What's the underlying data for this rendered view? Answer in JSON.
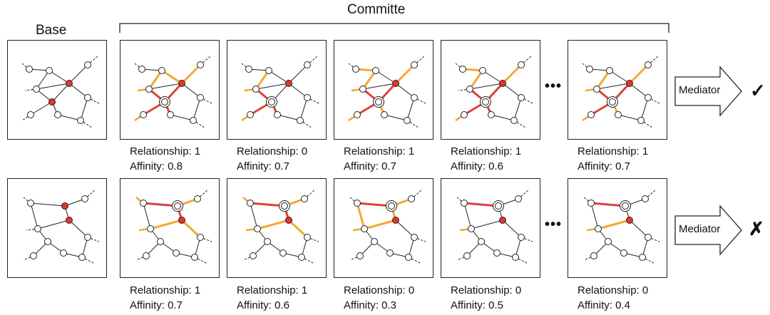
{
  "header": {
    "committee_label": "Committe",
    "base_label": "Base"
  },
  "colors": {
    "red": "#e8332a",
    "orange": "#f6a633",
    "red_edge": "#e0403a",
    "ink": "#222222"
  },
  "mediator_label": "Mediator",
  "ellipsis": "•••",
  "rows": [
    {
      "verdict": "✓",
      "members": [
        {
          "relationship": "Relationship: 1",
          "affinity": "Affinity: 0.8"
        },
        {
          "relationship": "Relationship: 0",
          "affinity": "Affinity: 0.7"
        },
        {
          "relationship": "Relationship: 1",
          "affinity": "Affinity: 0.7"
        },
        {
          "relationship": "Relationship: 1",
          "affinity": "Affinity: 0.6"
        },
        {
          "relationship": "Relationship: 1",
          "affinity": "Affinity: 0.7"
        }
      ]
    },
    {
      "verdict": "✗",
      "members": [
        {
          "relationship": "Relationship: 1",
          "affinity": "Affinity: 0.7"
        },
        {
          "relationship": "Relationship: 1",
          "affinity": "Affinity: 0.6"
        },
        {
          "relationship": "Relationship: 0",
          "affinity": "Affinity: 0.3"
        },
        {
          "relationship": "Relationship: 0",
          "affinity": "Affinity: 0.5"
        },
        {
          "relationship": "Relationship: 0",
          "affinity": "Affinity: 0.4"
        }
      ]
    }
  ]
}
